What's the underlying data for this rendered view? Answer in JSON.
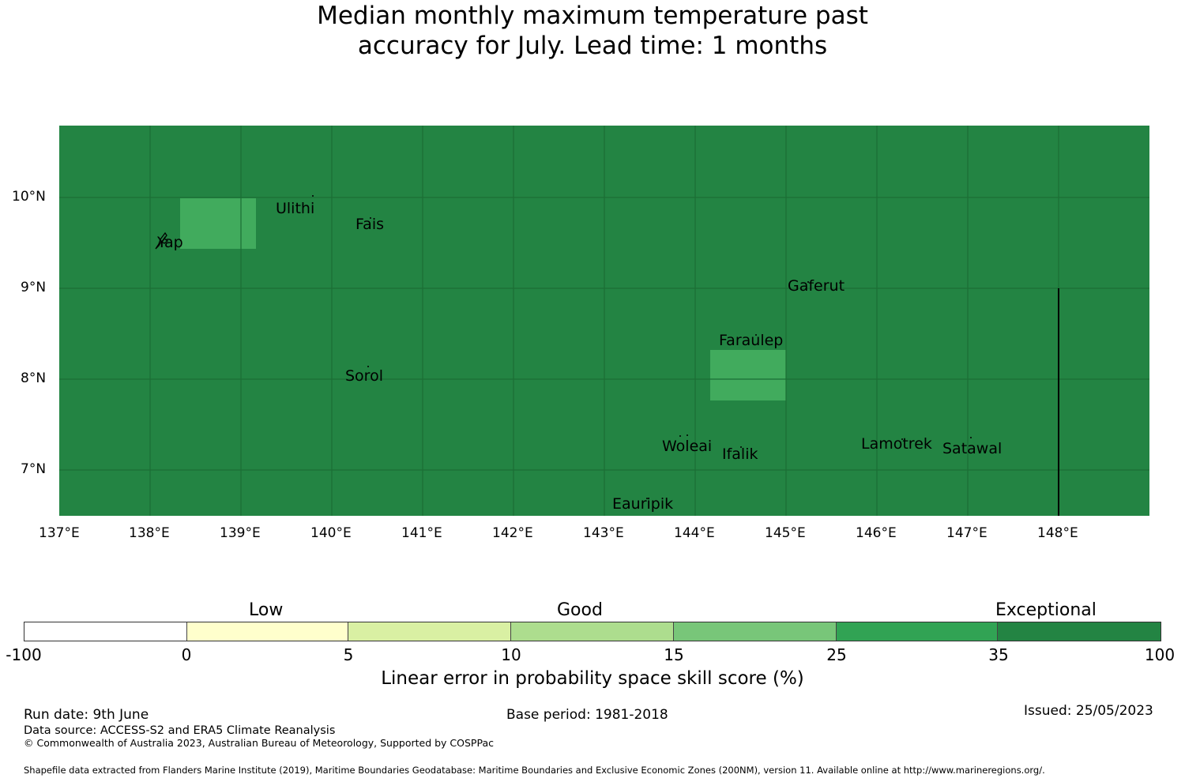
{
  "title_line1": "Median monthly maximum temperature past",
  "title_line2": "accuracy for July. Lead time: 1 months",
  "map": {
    "background_color": "#238443",
    "highlight_color": "#41ab5d",
    "lat_labels": [
      "10°N",
      "9°N",
      "8°N",
      "7°N"
    ],
    "lon_labels": [
      "137°E",
      "138°E",
      "139°E",
      "140°E",
      "141°E",
      "142°E",
      "143°E",
      "144°E",
      "145°E",
      "146°E",
      "147°E",
      "148°E"
    ],
    "places": {
      "ulithi": "Ulithi",
      "fais": "Fais",
      "yap": "Yap",
      "gaferut": "Gaferut",
      "faraulep": "Faraulep",
      "sorol": "Sorol",
      "woleai": "Woleai",
      "ifalik": "Ifalik",
      "lamotrek": "Lamotrek",
      "satawal": "Satawal",
      "eauripik": "Eauripik"
    }
  },
  "legend": {
    "categories": {
      "low": "Low",
      "good": "Good",
      "exceptional": "Exceptional"
    },
    "bin_colors": [
      "#ffffff",
      "#ffffcc",
      "#d9f0a3",
      "#addd8e",
      "#78c679",
      "#31a354",
      "#238443"
    ],
    "tick_labels": [
      "-100",
      "0",
      "5",
      "10",
      "15",
      "25",
      "35",
      "100"
    ],
    "axis_label": "Linear error in probability space skill score (%)"
  },
  "footer": {
    "run_date": "Run date: 9th June",
    "base_period": "Base period: 1981-2018",
    "issued": "Issued: 25/05/2023",
    "data_source": "Data source: ACCESS-S2 and ERA5 Climate Reanalysis",
    "copyright": "© Commonwealth of Australia 2023, Australian Bureau of Meteorology, Supported by COSPPac",
    "shapefile": "Shapefile data extracted from Flanders Marine Institute (2019), Maritime Boundaries Geodatabase: Maritime Boundaries and Exclusive Economic Zones (200NM), version 11. Available online at http://www.marineregions.org/."
  }
}
